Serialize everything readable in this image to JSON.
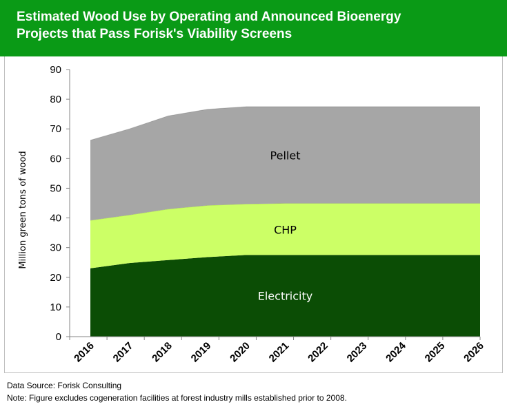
{
  "title": {
    "line1": "Estimated Wood Use by Operating and Announced Bioenergy",
    "line2": "Projects that Pass Forisk's Viability Screens"
  },
  "colors": {
    "banner": "#0a9a16",
    "electricity": "#0b4d05",
    "chp": "#ccff66",
    "pellet": "#a6a6a6"
  },
  "footer": {
    "source": "Data Source: Forisk Consulting",
    "note": "Note: Figure excludes cogeneration facilities at forest industry mills established prior to 2008."
  },
  "chart_data": {
    "type": "area",
    "stacked": true,
    "title": "Estimated Wood Use by Operating and Announced Bioenergy Projects that Pass Forisk's Viability Screens",
    "xlabel": "",
    "ylabel": "Million green tons of wood",
    "ylim": [
      0,
      90
    ],
    "yticks": [
      0,
      10,
      20,
      30,
      40,
      50,
      60,
      70,
      80,
      90
    ],
    "categories": [
      "2016",
      "2017",
      "2018",
      "2019",
      "2020",
      "2021",
      "2022",
      "2023",
      "2024",
      "2025",
      "2026"
    ],
    "grid": false,
    "legend": "none",
    "series": [
      {
        "name": "Electricity",
        "color": "#0b4d05",
        "label_color": "#ffffff",
        "values": [
          23.0,
          24.8,
          25.8,
          26.8,
          27.5,
          27.5,
          27.5,
          27.5,
          27.5,
          27.5,
          27.5
        ]
      },
      {
        "name": "CHP",
        "color": "#ccff66",
        "label_color": "#000000",
        "values": [
          16.2,
          16.2,
          17.2,
          17.4,
          17.2,
          17.4,
          17.4,
          17.4,
          17.4,
          17.4,
          17.4
        ]
      },
      {
        "name": "Pellet",
        "color": "#a6a6a6",
        "label_color": "#000000",
        "values": [
          27.0,
          29.0,
          31.4,
          32.4,
          32.8,
          32.6,
          32.6,
          32.6,
          32.6,
          32.6,
          32.6
        ]
      }
    ]
  }
}
